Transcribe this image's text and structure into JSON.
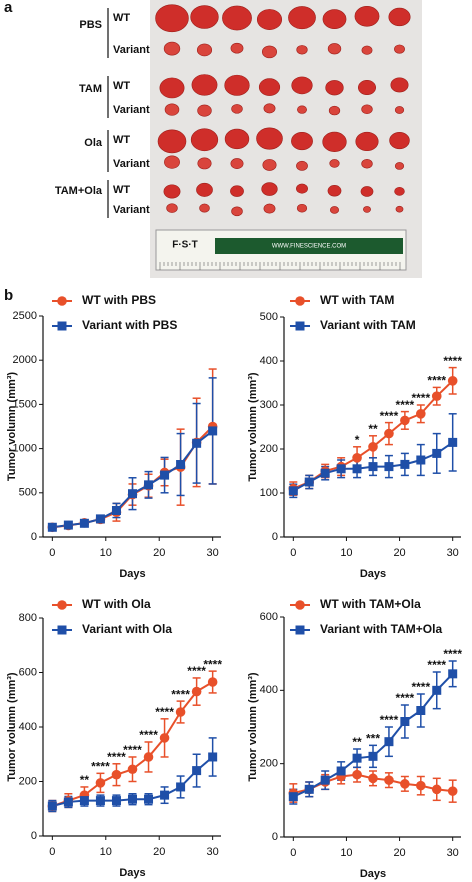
{
  "panel_a": {
    "label": "a",
    "groups": [
      {
        "treatment": "PBS",
        "rows": [
          "WT",
          "Variant"
        ]
      },
      {
        "treatment": "TAM",
        "rows": [
          "WT",
          "Variant"
        ]
      },
      {
        "treatment": "Ola",
        "rows": [
          "WT",
          "Variant"
        ]
      },
      {
        "treatment": "TAM+Ola",
        "rows": [
          "WT",
          "Variant"
        ]
      }
    ],
    "ruler": {
      "brand": "F·S·T",
      "url": "WWW.FINESCIENCE.COM"
    }
  },
  "panel_b": {
    "label": "b"
  },
  "chart_data": [
    {
      "type": "line",
      "xlabel": "Days",
      "ylabel": "Tumor volumn (mm³)",
      "x": [
        0,
        3,
        6,
        9,
        12,
        15,
        18,
        21,
        24,
        27,
        30
      ],
      "xlim": [
        -1,
        31
      ],
      "xticks": [
        0,
        10,
        20,
        30
      ],
      "ylim": [
        0,
        2500
      ],
      "yticks": [
        0,
        500,
        1000,
        1500,
        2000,
        2500
      ],
      "series": [
        {
          "name": "WT with PBS",
          "color": "#e8502a",
          "marker": "circle",
          "values": [
            110,
            130,
            160,
            200,
            280,
            480,
            580,
            730,
            790,
            1070,
            1250
          ],
          "errors": [
            20,
            20,
            30,
            40,
            100,
            120,
            130,
            150,
            430,
            500,
            650
          ]
        },
        {
          "name": "Variant with PBS",
          "color": "#1f4fa8",
          "marker": "square",
          "values": [
            110,
            135,
            155,
            205,
            300,
            490,
            590,
            700,
            820,
            1060,
            1200
          ],
          "errors": [
            20,
            20,
            30,
            40,
            80,
            180,
            150,
            200,
            350,
            450,
            600
          ]
        }
      ]
    },
    {
      "type": "line",
      "xlabel": "Days",
      "ylabel": "Tumor volumn (mm³)",
      "x": [
        0,
        3,
        6,
        9,
        12,
        15,
        18,
        21,
        24,
        27,
        30
      ],
      "xlim": [
        -1,
        31
      ],
      "xticks": [
        0,
        10,
        20,
        30
      ],
      "ylim": [
        0,
        500
      ],
      "yticks": [
        0,
        100,
        200,
        300,
        400,
        500
      ],
      "series": [
        {
          "name": "WT with TAM",
          "color": "#e8502a",
          "marker": "circle",
          "values": [
            110,
            125,
            150,
            160,
            180,
            205,
            235,
            265,
            280,
            320,
            355
          ],
          "errors": [
            15,
            15,
            15,
            20,
            25,
            25,
            25,
            20,
            20,
            20,
            30
          ]
        },
        {
          "name": "Variant with TAM",
          "color": "#1f4fa8",
          "marker": "square",
          "values": [
            105,
            125,
            145,
            155,
            155,
            160,
            160,
            165,
            175,
            190,
            215
          ],
          "errors": [
            15,
            15,
            15,
            20,
            20,
            20,
            25,
            25,
            35,
            45,
            65
          ]
        }
      ],
      "significance": [
        null,
        null,
        null,
        null,
        "*",
        "**",
        "****",
        "****",
        "****",
        "****",
        "****"
      ]
    },
    {
      "type": "line",
      "xlabel": "Days",
      "ylabel": "Tumor volumn (mm³)",
      "x": [
        0,
        3,
        6,
        9,
        12,
        15,
        18,
        21,
        24,
        27,
        30
      ],
      "xlim": [
        -1,
        31
      ],
      "xticks": [
        0,
        10,
        20,
        30
      ],
      "ylim": [
        0,
        800
      ],
      "yticks": [
        0,
        200,
        400,
        600,
        800
      ],
      "series": [
        {
          "name": "WT with Ola",
          "color": "#e8502a",
          "marker": "circle",
          "values": [
            110,
            130,
            150,
            195,
            225,
            245,
            290,
            360,
            455,
            530,
            565
          ],
          "errors": [
            20,
            25,
            30,
            35,
            40,
            45,
            55,
            70,
            40,
            50,
            40
          ]
        },
        {
          "name": "Variant with Ola",
          "color": "#1f4fa8",
          "marker": "square",
          "values": [
            110,
            125,
            130,
            130,
            130,
            135,
            135,
            150,
            180,
            240,
            290
          ],
          "errors": [
            20,
            20,
            20,
            20,
            20,
            20,
            20,
            30,
            40,
            60,
            70
          ]
        }
      ],
      "significance": [
        null,
        null,
        "**",
        "****",
        "****",
        "****",
        "****",
        "****",
        "****",
        "****",
        "****"
      ]
    },
    {
      "type": "line",
      "xlabel": "Days",
      "ylabel": "Tumor volumn (mm³)",
      "x": [
        0,
        3,
        6,
        9,
        12,
        15,
        18,
        21,
        24,
        27,
        30
      ],
      "xlim": [
        -1,
        31
      ],
      "xticks": [
        0,
        10,
        20,
        30
      ],
      "ylim": [
        0,
        600
      ],
      "yticks": [
        0,
        200,
        400,
        600
      ],
      "series": [
        {
          "name": "WT with TAM+Ola",
          "color": "#e8502a",
          "marker": "circle",
          "values": [
            120,
            130,
            150,
            165,
            170,
            160,
            155,
            145,
            140,
            130,
            125
          ],
          "errors": [
            25,
            20,
            20,
            20,
            20,
            20,
            20,
            20,
            25,
            30,
            30
          ]
        },
        {
          "name": "Variant with TAM+Ola",
          "color": "#1f4fa8",
          "marker": "square",
          "values": [
            110,
            130,
            155,
            180,
            215,
            220,
            260,
            315,
            345,
            400,
            445
          ],
          "errors": [
            20,
            20,
            25,
            25,
            25,
            30,
            40,
            45,
            45,
            50,
            35
          ]
        }
      ],
      "significance": [
        null,
        null,
        null,
        null,
        "**",
        "***",
        "****",
        "****",
        "****",
        "****",
        "****"
      ]
    }
  ]
}
